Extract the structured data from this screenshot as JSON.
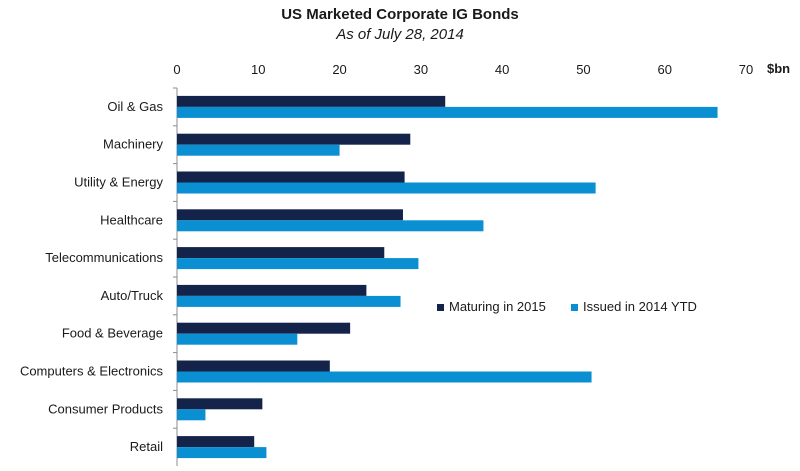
{
  "chart_data": {
    "type": "bar",
    "orientation": "horizontal",
    "title": "US Marketed Corporate IG Bonds",
    "subtitle": "As of July 28, 2014",
    "x_unit_label": "$bn",
    "xlim": [
      0,
      70
    ],
    "x_ticks": [
      0,
      10,
      20,
      30,
      40,
      50,
      60,
      70
    ],
    "x_axis_position": "top",
    "grid": false,
    "legend_position": "center-right",
    "categories": [
      "Oil & Gas",
      "Machinery",
      "Utility & Energy",
      "Healthcare",
      "Telecommunications",
      "Auto/Truck",
      "Food & Beverage",
      "Computers & Electronics",
      "Consumer Products",
      "Retail"
    ],
    "series": [
      {
        "name": "Maturing in 2015",
        "color": "#14234a",
        "values": [
          33,
          28.7,
          28,
          27.8,
          25.5,
          23.3,
          21.3,
          18.8,
          10.5,
          9.5
        ]
      },
      {
        "name": "Issued in 2014 YTD",
        "color": "#0b8fd3",
        "values": [
          66.5,
          20,
          51.5,
          37.7,
          29.7,
          27.5,
          14.8,
          51,
          3.5,
          11
        ]
      }
    ]
  }
}
